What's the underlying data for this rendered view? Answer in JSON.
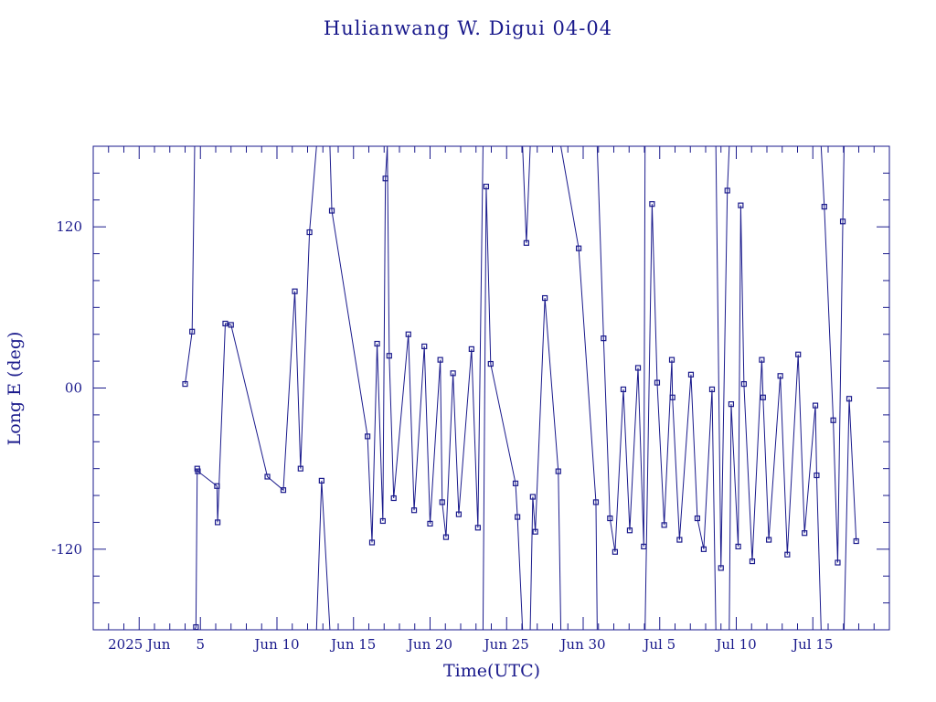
{
  "chart_data": {
    "type": "line",
    "title": "Hulianwang W. Digui 04-04",
    "xlabel": "Time(UTC)",
    "ylabel": "Long E (deg)",
    "ylim": [
      -180,
      180
    ],
    "xlim": [
      "2025-05-29",
      "2025-07-20"
    ],
    "yticks": [
      {
        "value": 120,
        "label": "120"
      },
      {
        "value": 0,
        "label": "00"
      },
      {
        "value": -120,
        "label": "-120"
      }
    ],
    "xticks": [
      {
        "date": "2025-06-01",
        "label": "2025 Jun"
      },
      {
        "date": "2025-06-05",
        "label": "5"
      },
      {
        "date": "2025-06-10",
        "label": "Jun 10"
      },
      {
        "date": "2025-06-15",
        "label": "Jun 15"
      },
      {
        "date": "2025-06-20",
        "label": "Jun 20"
      },
      {
        "date": "2025-06-25",
        "label": "Jun 25"
      },
      {
        "date": "2025-06-30",
        "label": "Jun 30"
      },
      {
        "date": "2025-07-05",
        "label": "Jul 5"
      },
      {
        "date": "2025-07-10",
        "label": "Jul 10"
      },
      {
        "date": "2025-07-15",
        "label": "Jul 15"
      }
    ],
    "color": "#1a1a8c",
    "grid": false,
    "series": [
      {
        "points": [
          [
            "2025-06-04T00:00",
            3
          ],
          [
            "2025-06-04T11:00",
            42
          ],
          [
            "2025-06-04T15:00",
            180
          ],
          [
            "2025-06-04T15:00",
            -180
          ],
          [
            "2025-06-04T17:00",
            -178
          ],
          [
            "2025-06-04T19:00",
            -60
          ],
          [
            "2025-06-04T20:00",
            -62
          ],
          [
            "2025-06-06T02:00",
            -73
          ],
          [
            "2025-06-06T03:00",
            -100
          ],
          [
            "2025-06-06T15:00",
            48
          ],
          [
            "2025-06-07T00:00",
            47
          ],
          [
            "2025-06-09T09:00",
            -66
          ],
          [
            "2025-06-10T10:00",
            -76
          ],
          [
            "2025-06-11T04:00",
            72
          ],
          [
            "2025-06-11T13:00",
            -60
          ],
          [
            "2025-06-12T03:00",
            116
          ],
          [
            "2025-06-12T14:00",
            180
          ],
          [
            "2025-06-12T14:00",
            -180
          ],
          [
            "2025-06-12T22:00",
            -69
          ],
          [
            "2025-06-13T11:00",
            -180
          ],
          [
            "2025-06-13T11:00",
            180
          ],
          [
            "2025-06-13T14:00",
            132
          ],
          [
            "2025-06-15T22:00",
            -36
          ],
          [
            "2025-06-16T05:00",
            -115
          ],
          [
            "2025-06-16T13:00",
            33
          ],
          [
            "2025-06-16T22:00",
            -99
          ],
          [
            "2025-06-17T02:00",
            156
          ],
          [
            "2025-06-17T05:00",
            180
          ],
          [
            "2025-06-17T08:00",
            24
          ],
          [
            "2025-06-17T15:00",
            -82
          ],
          [
            "2025-06-18T14:00",
            40
          ],
          [
            "2025-06-18T23:00",
            -91
          ],
          [
            "2025-06-19T15:00",
            31
          ],
          [
            "2025-06-20T00:00",
            -101
          ],
          [
            "2025-06-20T16:00",
            21
          ],
          [
            "2025-06-20T19:00",
            -85
          ],
          [
            "2025-06-21T01:00",
            -111
          ],
          [
            "2025-06-21T12:00",
            11
          ],
          [
            "2025-06-21T21:00",
            -94
          ],
          [
            "2025-06-22T17:00",
            29
          ],
          [
            "2025-06-23T03:00",
            -104
          ],
          [
            "2025-06-23T11:00",
            180
          ],
          [
            "2025-06-23T11:00",
            -180
          ],
          [
            "2025-06-23T16:00",
            150
          ],
          [
            "2025-06-23T23:00",
            18
          ],
          [
            "2025-06-25T14:00",
            -71
          ],
          [
            "2025-06-25T17:00",
            -96
          ],
          [
            "2025-06-26T01:00",
            -180
          ],
          [
            "2025-06-26T01:00",
            180
          ],
          [
            "2025-06-26T07:00",
            108
          ],
          [
            "2025-06-26T13:00",
            180
          ],
          [
            "2025-06-26T13:00",
            -180
          ],
          [
            "2025-06-26T17:00",
            -81
          ],
          [
            "2025-06-26T21:00",
            -107
          ],
          [
            "2025-06-27T12:00",
            67
          ],
          [
            "2025-06-28T09:00",
            -62
          ],
          [
            "2025-06-28T13:00",
            -180
          ],
          [
            "2025-06-28T13:00",
            180
          ],
          [
            "2025-06-29T17:00",
            104
          ],
          [
            "2025-06-30T20:00",
            -85
          ],
          [
            "2025-06-30T22:00",
            -180
          ],
          [
            "2025-06-30T22:00",
            180
          ],
          [
            "2025-07-01T08:00",
            37
          ],
          [
            "2025-07-01T18:00",
            -97
          ],
          [
            "2025-07-02T02:00",
            -122
          ],
          [
            "2025-07-02T15:00",
            -1
          ],
          [
            "2025-07-03T01:00",
            -106
          ],
          [
            "2025-07-03T14:00",
            15
          ],
          [
            "2025-07-03T23:00",
            -118
          ],
          [
            "2025-07-04T01:00",
            180
          ],
          [
            "2025-07-04T01:00",
            -180
          ],
          [
            "2025-07-04T12:00",
            137
          ],
          [
            "2025-07-04T20:00",
            4
          ],
          [
            "2025-07-05T07:00",
            -102
          ],
          [
            "2025-07-05T19:00",
            21
          ],
          [
            "2025-07-05T20:00",
            -7
          ],
          [
            "2025-07-06T07:00",
            -113
          ],
          [
            "2025-07-07T01:00",
            10
          ],
          [
            "2025-07-07T11:00",
            -97
          ],
          [
            "2025-07-07T21:00",
            -120
          ],
          [
            "2025-07-08T10:00",
            -1
          ],
          [
            "2025-07-08T16:00",
            -180
          ],
          [
            "2025-07-08T16:00",
            180
          ],
          [
            "2025-07-09T00:00",
            -134
          ],
          [
            "2025-07-09T10:00",
            147
          ],
          [
            "2025-07-09T13:00",
            180
          ],
          [
            "2025-07-09T13:00",
            -180
          ],
          [
            "2025-07-09T16:00",
            -12
          ],
          [
            "2025-07-10T03:00",
            -118
          ],
          [
            "2025-07-10T07:00",
            136
          ],
          [
            "2025-07-10T12:00",
            3
          ],
          [
            "2025-07-11T01:00",
            -129
          ],
          [
            "2025-07-11T16:00",
            21
          ],
          [
            "2025-07-11T18:00",
            -7
          ],
          [
            "2025-07-12T03:00",
            -113
          ],
          [
            "2025-07-12T21:00",
            9
          ],
          [
            "2025-07-13T08:00",
            -124
          ],
          [
            "2025-07-14T01:00",
            25
          ],
          [
            "2025-07-14T11:00",
            -108
          ],
          [
            "2025-07-15T04:00",
            -13
          ],
          [
            "2025-07-15T06:00",
            -65
          ],
          [
            "2025-07-15T13:00",
            -180
          ],
          [
            "2025-07-15T13:00",
            180
          ],
          [
            "2025-07-15T18:00",
            135
          ],
          [
            "2025-07-16T08:00",
            -24
          ],
          [
            "2025-07-16T15:00",
            -130
          ],
          [
            "2025-07-16T23:00",
            124
          ],
          [
            "2025-07-17T01:00",
            180
          ],
          [
            "2025-07-17T01:00",
            -180
          ],
          [
            "2025-07-17T09:00",
            -8
          ],
          [
            "2025-07-17T20:00",
            -114
          ]
        ]
      }
    ]
  }
}
